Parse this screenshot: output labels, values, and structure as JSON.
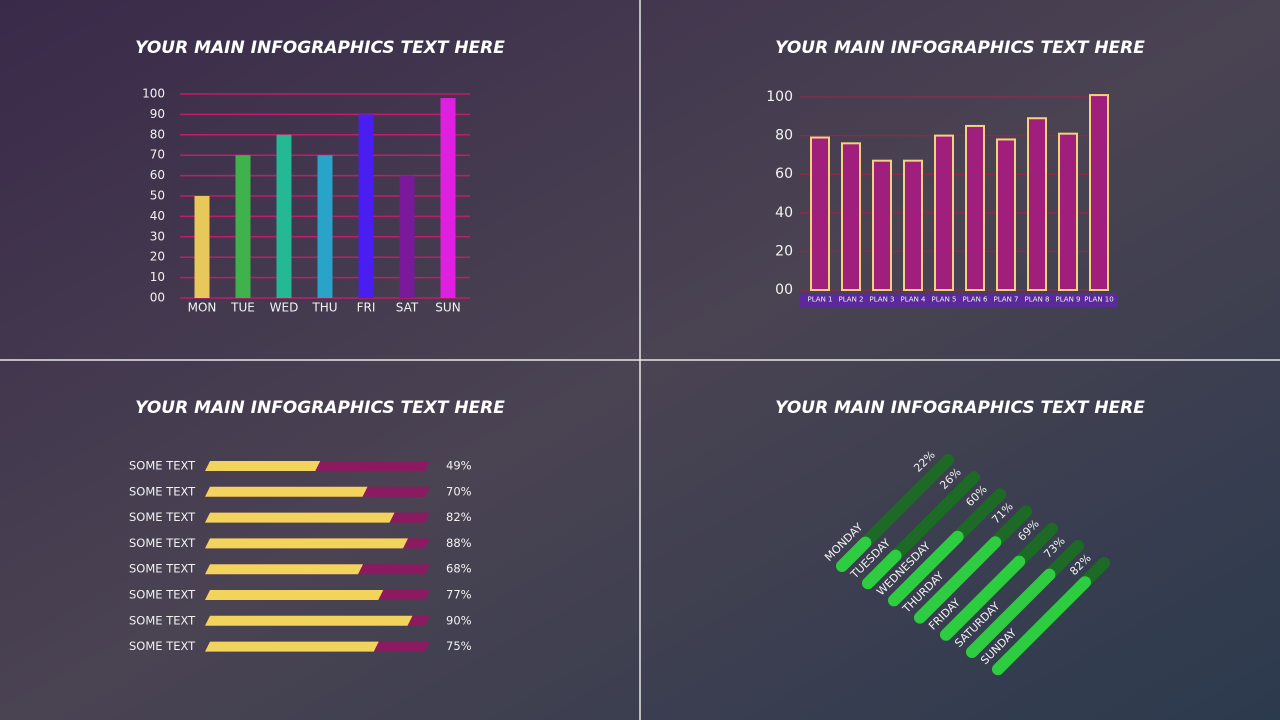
{
  "chart_data": [
    {
      "type": "bar",
      "title": "YOUR MAIN INFOGRAPHICS TEXT HERE",
      "categories": [
        "MON",
        "TUE",
        "WED",
        "THU",
        "FRI",
        "SAT",
        "SUN"
      ],
      "values": [
        50,
        70,
        80,
        70,
        90,
        60,
        98
      ],
      "colors": [
        "#e8c85a",
        "#3fb24e",
        "#24b894",
        "#2aa3c8",
        "#4a1ef0",
        "#7a1a9a",
        "#e020e0"
      ],
      "ylim": [
        0,
        100
      ],
      "yticks": [
        {
          "value": 0,
          "label": "00"
        },
        10,
        20,
        30,
        40,
        50,
        60,
        70,
        80,
        90,
        100
      ],
      "grid": true,
      "grid_color": "#c01c6c"
    },
    {
      "type": "bar",
      "title": "YOUR MAIN INFOGRAPHICS TEXT HERE",
      "categories": [
        "PLAN 1",
        "PLAN 2",
        "PLAN 3",
        "PLAN 4",
        "PLAN 5",
        "PLAN 6",
        "PLAN 7",
        "PLAN 8",
        "PLAN 9",
        "PLAN 10"
      ],
      "values": [
        79,
        76,
        67,
        67,
        80,
        85,
        78,
        89,
        81,
        101
      ],
      "color": "#a01f7c",
      "edge_color": "#f3d27e",
      "ylim": [
        0,
        100
      ],
      "yticks": [
        {
          "value": 0,
          "label": "00"
        },
        20,
        40,
        60,
        80,
        100
      ],
      "grid": true,
      "grid_color": "#8a2a4a"
    },
    {
      "type": "progress",
      "orientation": "horizontal",
      "title": "YOUR MAIN INFOGRAPHICS TEXT HERE",
      "categories": [
        "SOME TEXT",
        "SOME TEXT",
        "SOME TEXT",
        "SOME TEXT",
        "SOME TEXT",
        "SOME TEXT",
        "SOME TEXT",
        "SOME TEXT"
      ],
      "values": [
        49,
        70,
        82,
        88,
        68,
        77,
        90,
        75
      ],
      "value_labels": [
        "49%",
        "70%",
        "82%",
        "88%",
        "68%",
        "77%",
        "90%",
        "75%"
      ],
      "xlim": [
        0,
        100
      ],
      "color": "#f2d45c",
      "track_color": "#8c1a60"
    },
    {
      "type": "progress",
      "orientation": "diagonal",
      "title": "YOUR MAIN INFOGRAPHICS TEXT HERE",
      "categories": [
        "MONDAY",
        "TUESDAY",
        "WEDNESDAY",
        "THURDAY",
        "FRIDAY",
        "SATURDAY",
        "SUNDAY"
      ],
      "values": [
        22,
        26,
        60,
        71,
        69,
        73,
        82
      ],
      "value_labels": [
        "22%",
        "26%",
        "60%",
        "71%",
        "69%",
        "73%",
        "82%"
      ],
      "xlim": [
        0,
        100
      ],
      "color": "#2ecc40",
      "track_color": "#1c6a25"
    }
  ]
}
